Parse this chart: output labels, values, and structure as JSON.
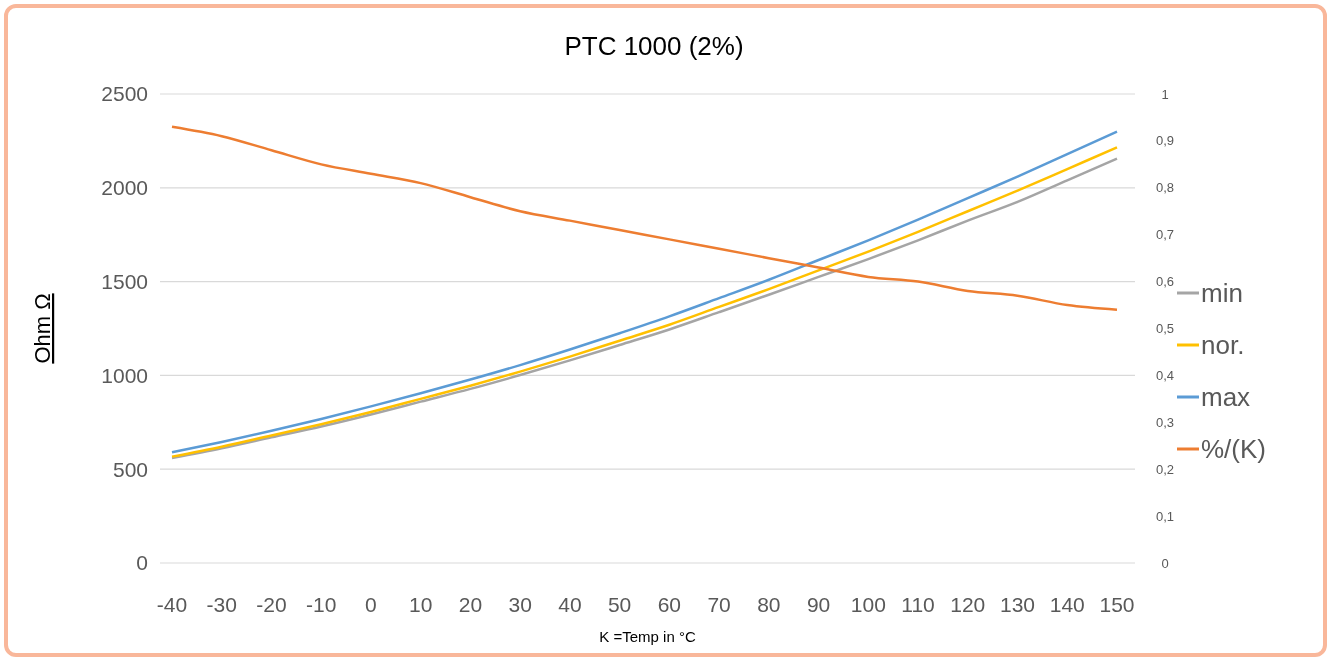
{
  "chart_data": {
    "type": "line",
    "title": "PTC 1000 (2%)",
    "xlabel": "K =Temp in °C",
    "ylabel": "Ohm Ω",
    "categories": [
      "-40",
      "-30",
      "-20",
      "-10",
      "0",
      "10",
      "20",
      "30",
      "40",
      "50",
      "60",
      "70",
      "80",
      "90",
      "100",
      "110",
      "120",
      "130",
      "140",
      "150"
    ],
    "ylim": [
      0,
      2500
    ],
    "yticks": [
      0,
      500,
      1000,
      1500,
      2000,
      2500
    ],
    "y2lim": [
      0,
      1
    ],
    "y2ticks": [
      {
        "value": 0,
        "label": "0"
      },
      {
        "value": 0.1,
        "label": "0,1"
      },
      {
        "value": 0.2,
        "label": "0,2"
      },
      {
        "value": 0.3,
        "label": "0,3"
      },
      {
        "value": 0.4,
        "label": "0,4"
      },
      {
        "value": 0.5,
        "label": "0,5"
      },
      {
        "value": 0.6,
        "label": "0,6"
      },
      {
        "value": 0.7,
        "label": "0,7"
      },
      {
        "value": 0.8,
        "label": "0,8"
      },
      {
        "value": 0.9,
        "label": "0,9"
      },
      {
        "value": 1,
        "label": "1"
      }
    ],
    "grid": "y",
    "legend": "right",
    "marker": "none",
    "line_style": "solid",
    "series": [
      {
        "name": "min",
        "color": "#a5a5a5",
        "values": [
          560,
          612,
          670,
          728,
          792,
          860,
          928,
          1002,
          1080,
          1162,
          1245,
          1337,
          1430,
          1525,
          1620,
          1720,
          1825,
          1925,
          2040,
          2155
        ]
      },
      {
        "name": "nor.",
        "color": "#ffc000",
        "values": [
          567,
          620,
          680,
          740,
          805,
          875,
          945,
          1020,
          1100,
          1185,
          1270,
          1365,
          1460,
          1560,
          1660,
          1765,
          1875,
          1985,
          2100,
          2215
        ]
      },
      {
        "name": "max",
        "color": "#5b9bd5",
        "values": [
          590,
          645,
          705,
          768,
          835,
          905,
          978,
          1055,
          1138,
          1225,
          1315,
          1412,
          1510,
          1615,
          1720,
          1830,
          1945,
          2060,
          2180,
          2300
        ]
      },
      {
        "name": "%/(K)",
        "color": "#ed7d31",
        "axis": "y2",
        "values": [
          0.93,
          0.91,
          0.88,
          0.85,
          0.83,
          0.81,
          0.78,
          0.75,
          0.73,
          0.71,
          0.69,
          0.67,
          0.65,
          0.63,
          0.61,
          0.6,
          0.58,
          0.57,
          0.55,
          0.54
        ]
      }
    ]
  }
}
